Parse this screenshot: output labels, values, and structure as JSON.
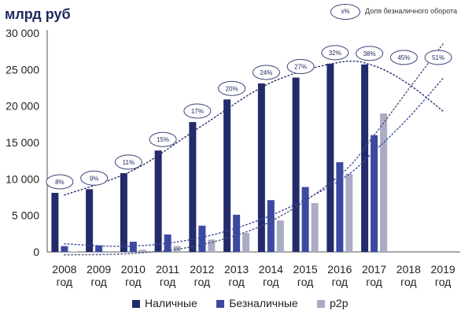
{
  "unit_label": "млрд руб",
  "share_legend": {
    "marker_text": "x%",
    "label": "Доля безналичного оборота"
  },
  "chart_data": {
    "type": "bar",
    "categories": [
      [
        "2008",
        "год"
      ],
      [
        "2009",
        "год"
      ],
      [
        "2010",
        "год"
      ],
      [
        "2011",
        "год"
      ],
      [
        "2012",
        "год"
      ],
      [
        "2013",
        "год"
      ],
      [
        "2014",
        "год"
      ],
      [
        "2015",
        "год"
      ],
      [
        "2016",
        "год"
      ],
      [
        "2017",
        "год"
      ],
      [
        "2018",
        "год"
      ],
      [
        "2019",
        "год"
      ]
    ],
    "series": [
      {
        "name": "Наличные",
        "color": "#232b6b",
        "values": [
          8100,
          8600,
          10800,
          13900,
          17800,
          20900,
          23100,
          23900,
          25800,
          25700,
          null,
          null
        ]
      },
      {
        "name": "Безналичные",
        "color": "#3b4aa0",
        "values": [
          800,
          900,
          1400,
          2400,
          3600,
          5100,
          7100,
          8900,
          12300,
          16000,
          null,
          null
        ]
      },
      {
        "name": "р2р",
        "color": "#a9acc4",
        "values": [
          50,
          100,
          300,
          800,
          1700,
          2600,
          4300,
          6700,
          10700,
          19000,
          null,
          null
        ]
      }
    ],
    "share_labels": [
      "8%",
      "9%",
      "11%",
      "15%",
      "17%",
      "20%",
      "24%",
      "27%",
      "32%",
      "38%",
      "45%",
      "51%"
    ],
    "y_ticks": [
      "0",
      "5 000",
      "10 000",
      "15 000",
      "20 000",
      "25 000",
      "30 000"
    ],
    "ylim": [
      0,
      30000
    ],
    "grid": false,
    "legend_position": "bottom",
    "trend_lines": [
      {
        "series": "Наличные",
        "style": "dotted",
        "color": "#232b6b",
        "points": [
          [
            0,
            7800
          ],
          [
            2,
            11200
          ],
          [
            4,
            17300
          ],
          [
            6,
            23200
          ],
          [
            8,
            26000
          ],
          [
            9,
            25500
          ],
          [
            10,
            23000
          ],
          [
            11,
            19300
          ]
        ]
      },
      {
        "series": "Безналичные",
        "style": "dotted",
        "color": "#3b4aa0",
        "points": [
          [
            0,
            1100
          ],
          [
            2,
            800
          ],
          [
            4,
            2000
          ],
          [
            6,
            5000
          ],
          [
            8,
            9800
          ],
          [
            9,
            13800
          ],
          [
            10,
            18400
          ],
          [
            11,
            23800
          ]
        ]
      },
      {
        "series": "р2р",
        "style": "dotted",
        "color": "#4a4f7a",
        "points": [
          [
            0,
            -400
          ],
          [
            2,
            -200
          ],
          [
            4,
            1000
          ],
          [
            6,
            4200
          ],
          [
            8,
            10500
          ],
          [
            9,
            16000
          ],
          [
            10,
            22300
          ],
          [
            11,
            28500
          ]
        ]
      }
    ]
  }
}
